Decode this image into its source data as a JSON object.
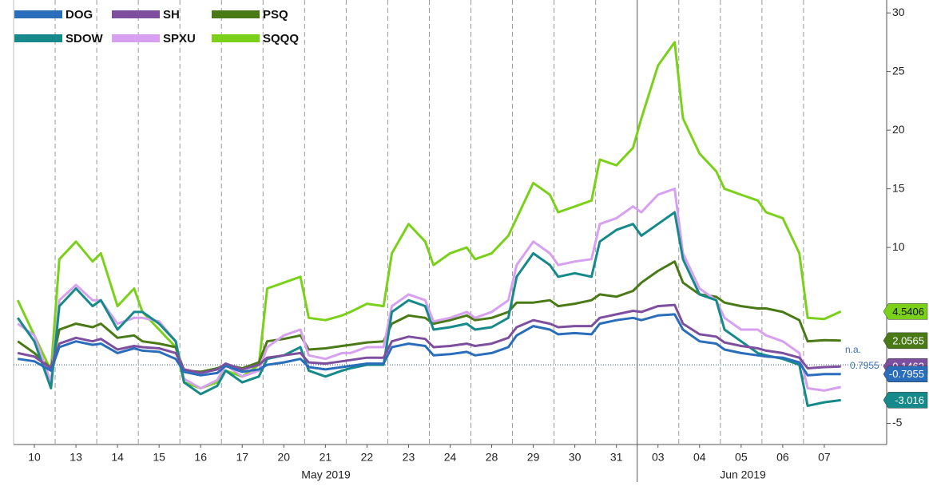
{
  "chart_data": {
    "type": "line",
    "x": [
      0.1,
      0.5,
      0.9,
      1.1,
      1.5,
      1.9,
      2.1,
      2.5,
      2.9,
      3.1,
      3.5,
      3.9,
      4.1,
      4.5,
      4.9,
      5.1,
      5.5,
      5.9,
      6.1,
      6.5,
      6.9,
      7.1,
      7.5,
      7.9,
      8.1,
      8.5,
      8.9,
      9.1,
      9.5,
      9.9,
      10.1,
      10.5,
      10.9,
      11.1,
      11.5,
      11.9,
      12.1,
      12.5,
      12.9,
      13.1,
      13.5,
      13.9,
      14.1,
      14.5,
      14.9,
      15.1,
      15.5,
      15.9,
      16.1,
      16.5,
      16.9,
      17.1,
      17.5,
      17.9,
      18.1,
      18.5,
      18.9,
      19.1,
      19.5,
      19.9
    ],
    "xlim": [
      0,
      21
    ],
    "xticks": [
      {
        "value": 0.5,
        "label": "10"
      },
      {
        "value": 1.5,
        "label": "13"
      },
      {
        "value": 2.5,
        "label": "14"
      },
      {
        "value": 3.5,
        "label": "15"
      },
      {
        "value": 4.5,
        "label": "16"
      },
      {
        "value": 5.5,
        "label": "17"
      },
      {
        "value": 6.5,
        "label": "20"
      },
      {
        "value": 7.5,
        "label": "21"
      },
      {
        "value": 8.5,
        "label": "22"
      },
      {
        "value": 9.5,
        "label": "23"
      },
      {
        "value": 10.5,
        "label": "24"
      },
      {
        "value": 11.5,
        "label": "28"
      },
      {
        "value": 12.5,
        "label": "29"
      },
      {
        "value": 13.5,
        "label": "30"
      },
      {
        "value": 14.5,
        "label": "31"
      },
      {
        "value": 15.5,
        "label": "03"
      },
      {
        "value": 16.5,
        "label": "04"
      },
      {
        "value": 17.5,
        "label": "05"
      },
      {
        "value": 18.5,
        "label": "06"
      },
      {
        "value": 19.5,
        "label": "07"
      }
    ],
    "months": [
      "May 2019",
      "Jun 2019"
    ],
    "ylim": [
      -6.8,
      31.1
    ],
    "yticks": [
      -5,
      10,
      15,
      20,
      25,
      30
    ],
    "hline": 0,
    "annotations": [
      "n.a.",
      "0.7955"
    ],
    "legend": "top-left",
    "series": [
      {
        "name": "DOG",
        "color": "#2a6ebb",
        "values": [
          0.5,
          0.3,
          -0.5,
          1.5,
          2,
          1.7,
          1.8,
          1,
          1.4,
          1.2,
          1.1,
          0.5,
          -0.6,
          -0.9,
          -0.7,
          -0.1,
          -0.6,
          -0.4,
          0,
          0.2,
          0.5,
          -0.2,
          -0.4,
          -0.2,
          -0.1,
          0.1,
          0.1,
          1.5,
          1.8,
          1.6,
          0.8,
          0.9,
          1.1,
          0.8,
          1,
          1.5,
          2.5,
          3.3,
          3,
          2.6,
          2.7,
          2.6,
          3.5,
          3.8,
          4,
          3.8,
          4.2,
          4.3,
          3,
          2,
          1.8,
          1.3,
          1,
          0.8,
          0.7,
          0.6,
          0.2,
          -0.9,
          -0.8,
          -0.7955
        ]
      },
      {
        "name": "SDOW",
        "color": "#168a8a",
        "values": [
          4,
          2,
          -2,
          5,
          6.5,
          5,
          5.5,
          3,
          4.5,
          4.5,
          3.5,
          2,
          -1.5,
          -2.5,
          -1.8,
          -0.5,
          -1.5,
          -1,
          0.5,
          0.8,
          1.5,
          -0.5,
          -1,
          -0.5,
          -0.3,
          0,
          0,
          4.5,
          5.5,
          5,
          3,
          3.2,
          3.5,
          3,
          3.2,
          4,
          7.5,
          9.5,
          8.5,
          7.5,
          7.8,
          7.5,
          10.5,
          11.5,
          12,
          11,
          12,
          13,
          9,
          6,
          5.5,
          3,
          2,
          1,
          0.8,
          0.5,
          0,
          -3.5,
          -3.2,
          -3.016
        ]
      },
      {
        "name": "SH",
        "color": "#7e4f9e",
        "values": [
          1,
          0.7,
          -0.3,
          1.8,
          2.3,
          2,
          2.2,
          1.3,
          1.6,
          1.5,
          1.4,
          1,
          -0.4,
          -0.7,
          -0.4,
          0.1,
          -0.4,
          0,
          0.6,
          0.8,
          1,
          0.2,
          0.1,
          0.3,
          0.4,
          0.6,
          0.6,
          2,
          2.4,
          2.2,
          1.5,
          1.6,
          1.8,
          1.6,
          1.8,
          2.3,
          3.2,
          3.8,
          3.5,
          3.2,
          3.3,
          3.3,
          4,
          4.3,
          4.6,
          4.5,
          5,
          5.1,
          3.5,
          2.6,
          2.4,
          1.9,
          1.6,
          1.4,
          1.2,
          1,
          0.6,
          -0.3,
          -0.2,
          -0.1462
        ]
      },
      {
        "name": "SPXU",
        "color": "#d8a0f0",
        "values": [
          3.5,
          2.5,
          -1.5,
          5.5,
          6.8,
          5.5,
          5.5,
          3.5,
          4,
          4,
          3.7,
          2,
          -1.2,
          -2,
          -1.3,
          0,
          -1,
          -0.5,
          1.5,
          2.5,
          3,
          0.8,
          0.5,
          1,
          1,
          1.5,
          1.5,
          5,
          6,
          5.5,
          3.7,
          4,
          4.5,
          4,
          4.5,
          5.5,
          8.5,
          10.5,
          9.5,
          8.5,
          8.8,
          9,
          12,
          12.5,
          13.5,
          13,
          14.5,
          15,
          9.5,
          6.5,
          5.5,
          4,
          3,
          3,
          2.5,
          2,
          1,
          -2,
          -2.2,
          -1.9
        ]
      },
      {
        "name": "PSQ",
        "color": "#4a7a16",
        "values": [
          2,
          1,
          -0.3,
          3,
          3.5,
          3.2,
          3.5,
          2.3,
          2.5,
          2,
          1.8,
          1.5,
          -0.5,
          -0.6,
          -0.3,
          0,
          -0.3,
          0.2,
          2,
          2.2,
          2.5,
          1.3,
          1.4,
          1.6,
          1.7,
          1.9,
          2,
          3.5,
          4.2,
          4,
          3.5,
          3.8,
          4.2,
          3.8,
          4,
          4.5,
          5.3,
          5.3,
          5.5,
          5,
          5.2,
          5.5,
          6,
          5.8,
          6.3,
          7,
          8,
          8.8,
          7,
          6,
          5.8,
          5.3,
          5,
          4.8,
          4.8,
          4.5,
          3.8,
          2,
          2.1,
          2.0565
        ]
      },
      {
        "name": "SQQQ",
        "color": "#7bd11a",
        "values": [
          5.5,
          2.5,
          -0.5,
          9,
          10.5,
          8.8,
          9.5,
          5,
          6.5,
          4.5,
          3,
          1.5,
          -1.5,
          -2,
          -1.5,
          -0.5,
          -1,
          0,
          6.5,
          7,
          7.5,
          4,
          3.8,
          4.2,
          4.5,
          5.2,
          5,
          9.5,
          12,
          10.5,
          8.5,
          9.5,
          10,
          9,
          9.5,
          11,
          12.5,
          15.5,
          14.5,
          13,
          13.5,
          14,
          17.5,
          17,
          18.5,
          21,
          25.5,
          27.5,
          21,
          18,
          16.5,
          15,
          14.5,
          14,
          13,
          12.5,
          9.5,
          4,
          3.9,
          4.5406
        ]
      }
    ]
  }
}
